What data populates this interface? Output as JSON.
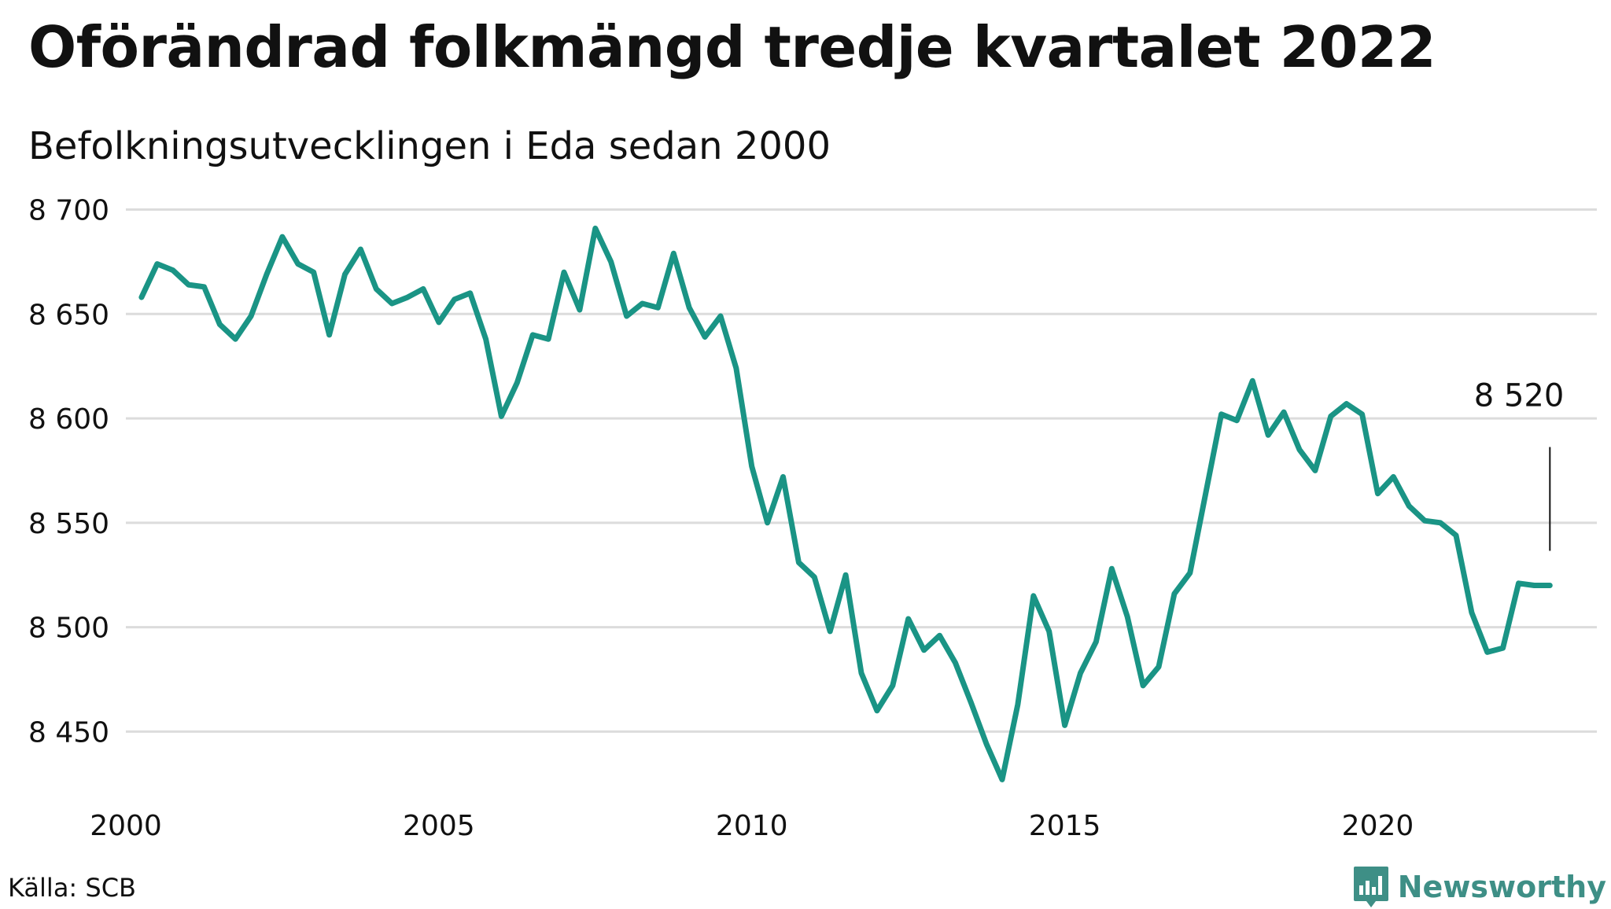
{
  "header": {
    "title": "Oförändrad folkmängd tredje kvartalet 2022",
    "subtitle": "Befolkningsutvecklingen i Eda sedan 2000"
  },
  "footer": {
    "source": "Källa: SCB",
    "brand": "Newsworthy",
    "brand_icon": "newsworthy-logo-icon"
  },
  "colors": {
    "line": "#1a9485",
    "grid": "#dcdcdc",
    "brand": "#3e8f86",
    "text": "#111111"
  },
  "chart_data": {
    "type": "line",
    "title": "Oförändrad folkmängd tredje kvartalet 2022",
    "subtitle": "Befolkningsutvecklingen i Eda sedan 2000",
    "xlabel": "",
    "ylabel": "",
    "xlim": [
      2000.0,
      2023.5
    ],
    "ylim": [
      8420,
      8710
    ],
    "y_ticks": [
      8450,
      8500,
      8550,
      8600,
      8650,
      8700
    ],
    "y_tick_labels": [
      "8 450",
      "8 500",
      "8 550",
      "8 600",
      "8 650",
      "8 700"
    ],
    "x_ticks": [
      2000,
      2005,
      2010,
      2015,
      2020
    ],
    "x_tick_labels": [
      "2000",
      "2005",
      "2010",
      "2015",
      "2020"
    ],
    "grid": true,
    "legend": "none",
    "end_label": "8 520",
    "x": [
      2000.25,
      2000.5,
      2000.75,
      2001.0,
      2001.25,
      2001.5,
      2001.75,
      2002.0,
      2002.25,
      2002.5,
      2002.75,
      2003.0,
      2003.25,
      2003.5,
      2003.75,
      2004.0,
      2004.25,
      2004.5,
      2004.75,
      2005.0,
      2005.25,
      2005.5,
      2005.75,
      2006.0,
      2006.25,
      2006.5,
      2006.75,
      2007.0,
      2007.25,
      2007.5,
      2007.75,
      2008.0,
      2008.25,
      2008.5,
      2008.75,
      2009.0,
      2009.25,
      2009.5,
      2009.75,
      2010.0,
      2010.25,
      2010.5,
      2010.75,
      2011.0,
      2011.25,
      2011.5,
      2011.75,
      2012.0,
      2012.25,
      2012.5,
      2012.75,
      2013.0,
      2013.25,
      2013.5,
      2013.75,
      2014.0,
      2014.25,
      2014.5,
      2014.75,
      2015.0,
      2015.25,
      2015.5,
      2015.75,
      2016.0,
      2016.25,
      2016.5,
      2016.75,
      2017.0,
      2017.25,
      2017.5,
      2017.75,
      2018.0,
      2018.25,
      2018.5,
      2018.75,
      2019.0,
      2019.25,
      2019.5,
      2019.75,
      2020.0,
      2020.25,
      2020.5,
      2020.75,
      2021.0,
      2021.25,
      2021.5,
      2021.75,
      2022.0,
      2022.25,
      2022.5,
      2022.75
    ],
    "series": [
      {
        "values": [
          8658,
          8674,
          8671,
          8664,
          8663,
          8645,
          8638,
          8649,
          8669,
          8687,
          8674,
          8670,
          8640,
          8669,
          8681,
          8662,
          8655,
          8658,
          8662,
          8646,
          8657,
          8660,
          8638,
          8601,
          8617,
          8640,
          8638,
          8670,
          8652,
          8691,
          8675,
          8649,
          8655,
          8653,
          8679,
          8653,
          8639,
          8649,
          8624,
          8577,
          8550,
          8572,
          8531,
          8524,
          8498,
          8525,
          8478,
          8460,
          8472,
          8504,
          8489,
          8496,
          8483,
          8464,
          8444,
          8427,
          8463,
          8515,
          8498,
          8453,
          8478,
          8493,
          8528,
          8505,
          8472,
          8481,
          8516,
          8526,
          8564,
          8602,
          8599,
          8618,
          8592,
          8603,
          8585,
          8575,
          8601,
          8607,
          8602,
          8564,
          8572,
          8558,
          8551,
          8550,
          8544,
          8507,
          8488,
          8490,
          8521,
          8520,
          8520
        ]
      }
    ]
  }
}
